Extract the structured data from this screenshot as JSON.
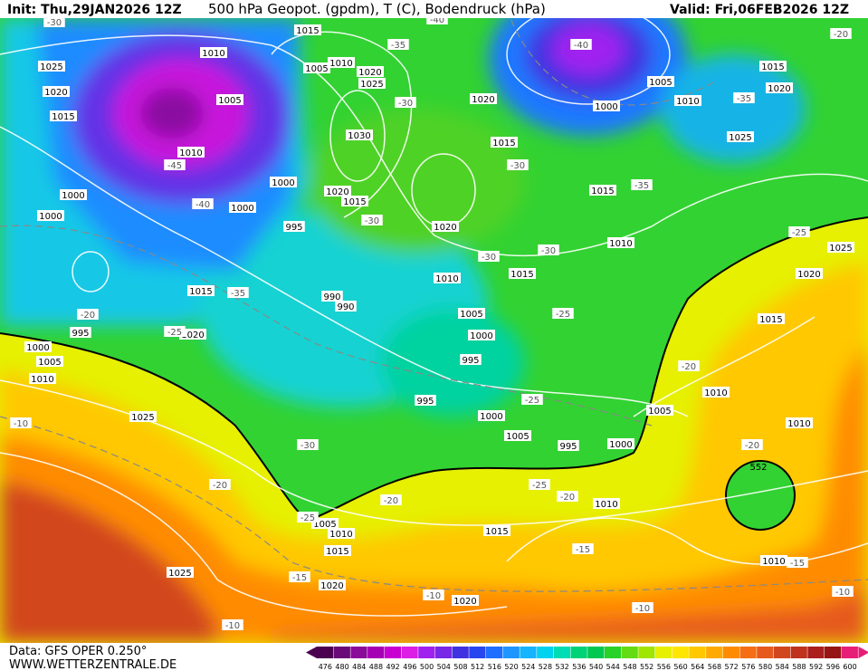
{
  "header": {
    "init": "Init: Thu,29JAN2026 12Z",
    "title": "500 hPa Geopot. (gpdm), T (C), Bodendruck (hPa)",
    "valid": "Valid: Fri,06FEB2026 12Z"
  },
  "footer": {
    "data": "Data: GFS OPER 0.250°",
    "site": "WWW.WETTERZENTRALE.DE"
  },
  "legend": {
    "labels": [
      476,
      480,
      484,
      488,
      492,
      496,
      500,
      504,
      508,
      512,
      516,
      520,
      524,
      528,
      532,
      536,
      540,
      544,
      548,
      552,
      556,
      560,
      564,
      568,
      572,
      576,
      580,
      584,
      588,
      592,
      596,
      600
    ],
    "colors": [
      "#4b0050",
      "#6a0a78",
      "#8a0a9a",
      "#a500b4",
      "#c800d2",
      "#dc1ee6",
      "#a020f0",
      "#7828e6",
      "#4032e0",
      "#2846f0",
      "#1e6eff",
      "#1e96ff",
      "#14b4ff",
      "#00d2f0",
      "#00dcb4",
      "#00d278",
      "#00c850",
      "#28d228",
      "#64dc14",
      "#a0e600",
      "#e6f000",
      "#ffe600",
      "#ffc800",
      "#ffaa00",
      "#ff8c00",
      "#f56e14",
      "#e65a1e",
      "#d2461e",
      "#be321e",
      "#aa1e1e",
      "#961414",
      "#e61e78"
    ]
  },
  "map": {
    "pressure_labels": [
      1025,
      1020,
      1015,
      1010,
      1005,
      1010,
      1000,
      1000,
      1000,
      1000,
      995,
      1015,
      1005,
      1010,
      1020,
      1025,
      1030,
      1020,
      1015,
      1020,
      1015,
      1020,
      1010,
      990,
      990,
      1015,
      1020,
      995,
      1000,
      1005,
      1010,
      1025,
      1005,
      1000,
      995,
      995,
      1000,
      1005,
      995,
      1000,
      1010,
      1015,
      1015,
      1010,
      1000,
      1005,
      1010,
      1015,
      1020,
      1025,
      1025,
      1020,
      1015,
      1010,
      1005,
      1010,
      1010,
      1005,
      1010,
      1015,
      1015,
      1020,
      1020,
      1025
    ],
    "temperature_labels": [
      -30,
      -40,
      -35,
      -40,
      -20,
      -30,
      -35,
      -45,
      -40,
      -30,
      -35,
      -30,
      -30,
      -30,
      -25,
      -35,
      -20,
      -25,
      -25,
      -25,
      -20,
      -10,
      -30,
      -20,
      -20,
      -20,
      -25,
      -20,
      -15,
      -15,
      -15,
      -10,
      -10,
      -10,
      -10,
      -25
    ],
    "height_label": 552
  }
}
